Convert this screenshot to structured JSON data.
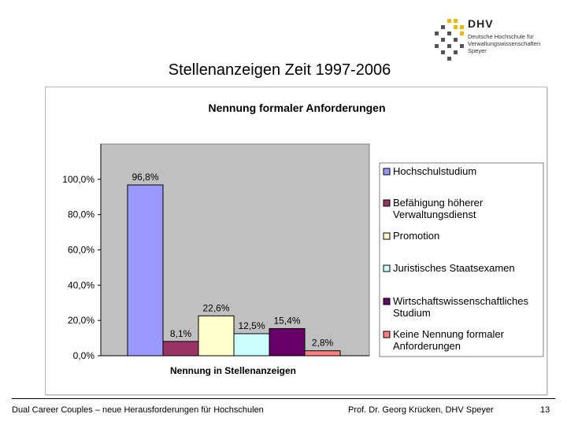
{
  "slide": {
    "title": "Stellenanzeigen Zeit 1997-2006",
    "footer_left": "Dual Career Couples – neue Herausforderungen für Hochschulen",
    "footer_right": "Prof. Dr. Georg Krücken, DHV Speyer",
    "page_number": "13"
  },
  "logo": {
    "name": "DHV",
    "line1": "Deutsche Hochschule für",
    "line2": "Verwaltungswissenschaften",
    "line3": "Speyer"
  },
  "chart_data": {
    "type": "bar",
    "title": "Nennung formaler Anforderungen",
    "xlabel": "Nennung in Stellenanzeigen",
    "ylabel": "",
    "ylim": [
      0,
      1.2
    ],
    "y_ticks": [
      0,
      0.2,
      0.4,
      0.6,
      0.8,
      1.0
    ],
    "y_tick_labels": [
      "0,0%",
      "20,0%",
      "40,0%",
      "60,0%",
      "80,0%",
      "100,0%"
    ],
    "plot_background": "#c0c0c0",
    "legend_position": "right",
    "series": [
      {
        "name": "Hochschulstudium",
        "value": 0.968,
        "label": "96,8%",
        "color": "#9999ff"
      },
      {
        "name": "Befähigung höherer Verwaltungsdienst",
        "value": 0.081,
        "label": "8,1%",
        "color": "#993366"
      },
      {
        "name": "Promotion",
        "value": 0.226,
        "label": "22,6%",
        "color": "#ffffcc"
      },
      {
        "name": "Juristisches Staatsexamen",
        "value": 0.125,
        "label": "12,5%",
        "color": "#ccffff"
      },
      {
        "name": "Wirtschaftswissenschaftliches Studium",
        "value": 0.154,
        "label": "15,4%",
        "color": "#660066"
      },
      {
        "name": "Keine Nennung formaler Anforderungen",
        "value": 0.028,
        "label": "2,8%",
        "color": "#ff8080"
      }
    ]
  }
}
